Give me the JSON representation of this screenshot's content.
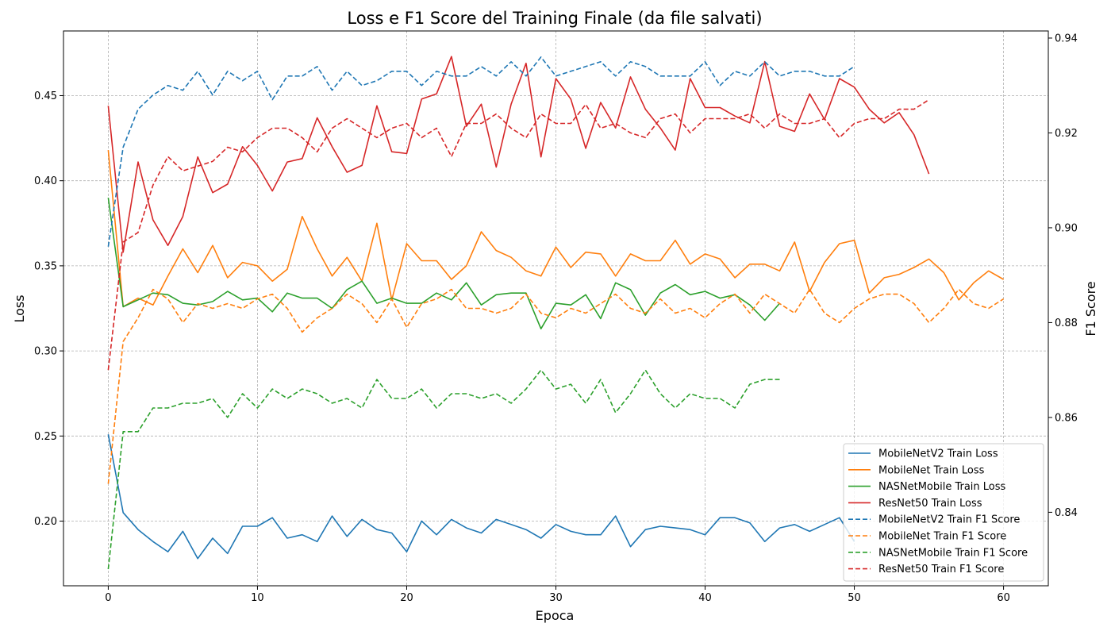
{
  "chart_data": {
    "type": "line",
    "title": "Loss e F1 Score del Training Finale (da file salvati)",
    "xlabel": "Epoca",
    "ylabel": "Loss",
    "y2label": "F1 Score",
    "xlim": [
      -3,
      63
    ],
    "ylim": [
      0.162,
      0.488
    ],
    "y2lim": [
      0.8245,
      0.9415
    ],
    "xticks": [
      0,
      10,
      20,
      30,
      40,
      50,
      60
    ],
    "yticks": [
      0.2,
      0.25,
      0.3,
      0.35,
      0.4,
      0.45
    ],
    "ytick_labels": [
      "0.20",
      "0.25",
      "0.30",
      "0.35",
      "0.40",
      "0.45"
    ],
    "y2ticks": [
      0.84,
      0.86,
      0.88,
      0.9,
      0.92,
      0.94
    ],
    "y2tick_labels": [
      "0.84",
      "0.86",
      "0.88",
      "0.90",
      "0.92",
      "0.94"
    ],
    "grid": true,
    "legend_position": "lower-right",
    "series": [
      {
        "name": "MobileNetV2 Train Loss",
        "axis": "left",
        "style": "solid",
        "color": "#1f77b4",
        "values": [
          0.251,
          0.205,
          0.195,
          0.188,
          0.182,
          0.194,
          0.178,
          0.19,
          0.181,
          0.197,
          0.197,
          0.202,
          0.19,
          0.192,
          0.188,
          0.203,
          0.191,
          0.201,
          0.195,
          0.193,
          0.182,
          0.2,
          0.192,
          0.201,
          0.196,
          0.193,
          0.201,
          0.198,
          0.195,
          0.19,
          0.198,
          0.194,
          0.192,
          0.192,
          0.203,
          0.185,
          0.195,
          0.197,
          0.196,
          0.195,
          0.192,
          0.202,
          0.202,
          0.199,
          0.188,
          0.196,
          0.198,
          0.194,
          0.198,
          0.202,
          0.188
        ]
      },
      {
        "name": "MobileNet Train Loss",
        "axis": "left",
        "style": "solid",
        "color": "#ff7f0e",
        "values": [
          0.418,
          0.326,
          0.331,
          0.327,
          0.344,
          0.36,
          0.346,
          0.362,
          0.343,
          0.352,
          0.35,
          0.341,
          0.348,
          0.379,
          0.36,
          0.344,
          0.355,
          0.341,
          0.375,
          0.33,
          0.363,
          0.353,
          0.353,
          0.342,
          0.35,
          0.37,
          0.359,
          0.355,
          0.347,
          0.344,
          0.361,
          0.349,
          0.358,
          0.357,
          0.344,
          0.357,
          0.353,
          0.353,
          0.365,
          0.351,
          0.357,
          0.354,
          0.343,
          0.351,
          0.351,
          0.347,
          0.364,
          0.335,
          0.352,
          0.363,
          0.365,
          0.334,
          0.343,
          0.345,
          0.349,
          0.354,
          0.346,
          0.33,
          0.34,
          0.347,
          0.342
        ]
      },
      {
        "name": "NASNetMobile Train Loss",
        "axis": "left",
        "style": "solid",
        "color": "#2ca02c",
        "values": [
          0.39,
          0.326,
          0.33,
          0.334,
          0.333,
          0.328,
          0.327,
          0.329,
          0.335,
          0.33,
          0.331,
          0.323,
          0.334,
          0.331,
          0.331,
          0.325,
          0.336,
          0.341,
          0.328,
          0.331,
          0.328,
          0.328,
          0.334,
          0.33,
          0.34,
          0.327,
          0.333,
          0.334,
          0.334,
          0.313,
          0.328,
          0.327,
          0.333,
          0.319,
          0.34,
          0.336,
          0.321,
          0.334,
          0.339,
          0.333,
          0.335,
          0.331,
          0.333,
          0.327,
          0.318,
          0.328
        ]
      },
      {
        "name": "ResNet50 Train Loss",
        "axis": "left",
        "style": "solid",
        "color": "#d62728",
        "values": [
          0.444,
          0.358,
          0.411,
          0.377,
          0.362,
          0.379,
          0.414,
          0.393,
          0.398,
          0.42,
          0.409,
          0.394,
          0.411,
          0.413,
          0.437,
          0.42,
          0.405,
          0.409,
          0.444,
          0.417,
          0.416,
          0.448,
          0.451,
          0.473,
          0.432,
          0.445,
          0.408,
          0.445,
          0.469,
          0.414,
          0.46,
          0.448,
          0.419,
          0.446,
          0.431,
          0.461,
          0.442,
          0.431,
          0.418,
          0.46,
          0.443,
          0.443,
          0.438,
          0.434,
          0.47,
          0.432,
          0.429,
          0.451,
          0.436,
          0.46,
          0.455,
          0.442,
          0.434,
          0.44,
          0.427,
          0.404
        ]
      },
      {
        "name": "MobileNetV2 Train F1 Score",
        "axis": "right",
        "style": "dashed",
        "color": "#1f77b4",
        "values": [
          0.896,
          0.917,
          0.925,
          0.928,
          0.93,
          0.929,
          0.933,
          0.928,
          0.933,
          0.931,
          0.933,
          0.927,
          0.932,
          0.932,
          0.934,
          0.929,
          0.933,
          0.93,
          0.931,
          0.933,
          0.933,
          0.93,
          0.933,
          0.932,
          0.932,
          0.934,
          0.932,
          0.935,
          0.932,
          0.936,
          0.932,
          0.933,
          0.934,
          0.935,
          0.932,
          0.935,
          0.934,
          0.932,
          0.932,
          0.932,
          0.935,
          0.93,
          0.933,
          0.932,
          0.935,
          0.932,
          0.933,
          0.933,
          0.932,
          0.932,
          0.934
        ]
      },
      {
        "name": "MobileNet Train F1 Score",
        "axis": "right",
        "style": "dashed",
        "color": "#ff7f0e",
        "values": [
          0.846,
          0.876,
          0.881,
          0.887,
          0.885,
          0.88,
          0.884,
          0.883,
          0.884,
          0.883,
          0.885,
          0.886,
          0.883,
          0.878,
          0.881,
          0.883,
          0.886,
          0.884,
          0.88,
          0.885,
          0.879,
          0.884,
          0.885,
          0.887,
          0.883,
          0.883,
          0.882,
          0.883,
          0.886,
          0.882,
          0.881,
          0.883,
          0.882,
          0.884,
          0.886,
          0.883,
          0.882,
          0.885,
          0.882,
          0.883,
          0.881,
          0.884,
          0.886,
          0.882,
          0.886,
          0.884,
          0.882,
          0.887,
          0.882,
          0.88,
          0.883,
          0.885,
          0.886,
          0.886,
          0.884,
          0.88,
          0.883,
          0.887,
          0.884,
          0.883,
          0.885
        ]
      },
      {
        "name": "NASNetMobile Train F1 Score",
        "axis": "right",
        "style": "dashed",
        "color": "#2ca02c",
        "values": [
          0.828,
          0.857,
          0.857,
          0.862,
          0.862,
          0.863,
          0.863,
          0.864,
          0.86,
          0.865,
          0.862,
          0.866,
          0.864,
          0.866,
          0.865,
          0.863,
          0.864,
          0.862,
          0.868,
          0.864,
          0.864,
          0.866,
          0.862,
          0.865,
          0.865,
          0.864,
          0.865,
          0.863,
          0.866,
          0.87,
          0.866,
          0.867,
          0.863,
          0.868,
          0.861,
          0.865,
          0.87,
          0.865,
          0.862,
          0.865,
          0.864,
          0.864,
          0.862,
          0.867,
          0.868,
          0.868
        ]
      },
      {
        "name": "ResNet50 Train F1 Score",
        "axis": "right",
        "style": "dashed",
        "color": "#d62728",
        "values": [
          0.87,
          0.897,
          0.899,
          0.909,
          0.915,
          0.912,
          0.913,
          0.914,
          0.917,
          0.916,
          0.919,
          0.921,
          0.921,
          0.919,
          0.916,
          0.921,
          0.923,
          0.921,
          0.919,
          0.921,
          0.922,
          0.919,
          0.921,
          0.915,
          0.922,
          0.922,
          0.924,
          0.921,
          0.919,
          0.924,
          0.922,
          0.922,
          0.926,
          0.921,
          0.922,
          0.92,
          0.919,
          0.923,
          0.924,
          0.92,
          0.923,
          0.923,
          0.923,
          0.924,
          0.921,
          0.924,
          0.922,
          0.922,
          0.923,
          0.919,
          0.922,
          0.923,
          0.923,
          0.925,
          0.925,
          0.927
        ]
      }
    ]
  }
}
